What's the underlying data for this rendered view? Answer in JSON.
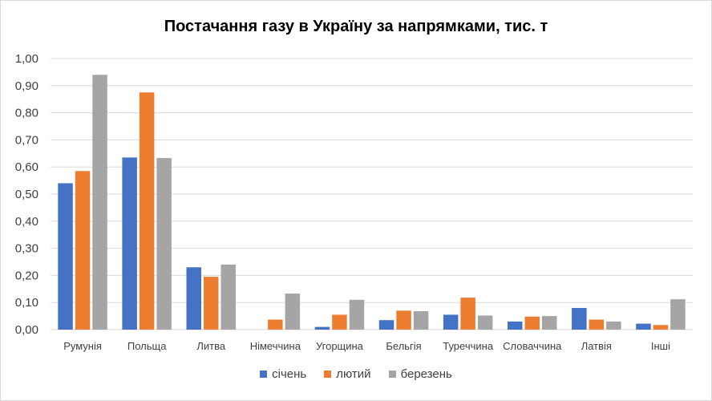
{
  "chart_data": {
    "type": "bar",
    "title": "Постачання газу в Україну за напрямками, тис. т",
    "xlabel": "",
    "ylabel": "",
    "ylim": [
      0,
      1.0
    ],
    "yticks": [
      "0,00",
      "0,10",
      "0,20",
      "0,30",
      "0,40",
      "0,50",
      "0,60",
      "0,70",
      "0,80",
      "0,90",
      "1,00"
    ],
    "grid": true,
    "legend_position": "bottom",
    "categories": [
      "Румунія",
      "Польща",
      "Литва",
      "Німеччина",
      "Угорщина",
      "Бельгія",
      "Туреччина",
      "Словаччина",
      "Латвія",
      "Інші"
    ],
    "series": [
      {
        "name": "січень",
        "color": "#4472c4",
        "values": [
          0.54,
          0.635,
          0.23,
          0.0,
          0.01,
          0.035,
          0.055,
          0.03,
          0.08,
          0.022
        ]
      },
      {
        "name": "лютий",
        "color": "#ed7d31",
        "values": [
          0.585,
          0.875,
          0.195,
          0.037,
          0.055,
          0.07,
          0.118,
          0.048,
          0.037,
          0.017
        ]
      },
      {
        "name": "березень",
        "color": "#a5a5a5",
        "values": [
          0.94,
          0.633,
          0.24,
          0.133,
          0.11,
          0.068,
          0.052,
          0.05,
          0.03,
          0.112
        ]
      }
    ]
  }
}
